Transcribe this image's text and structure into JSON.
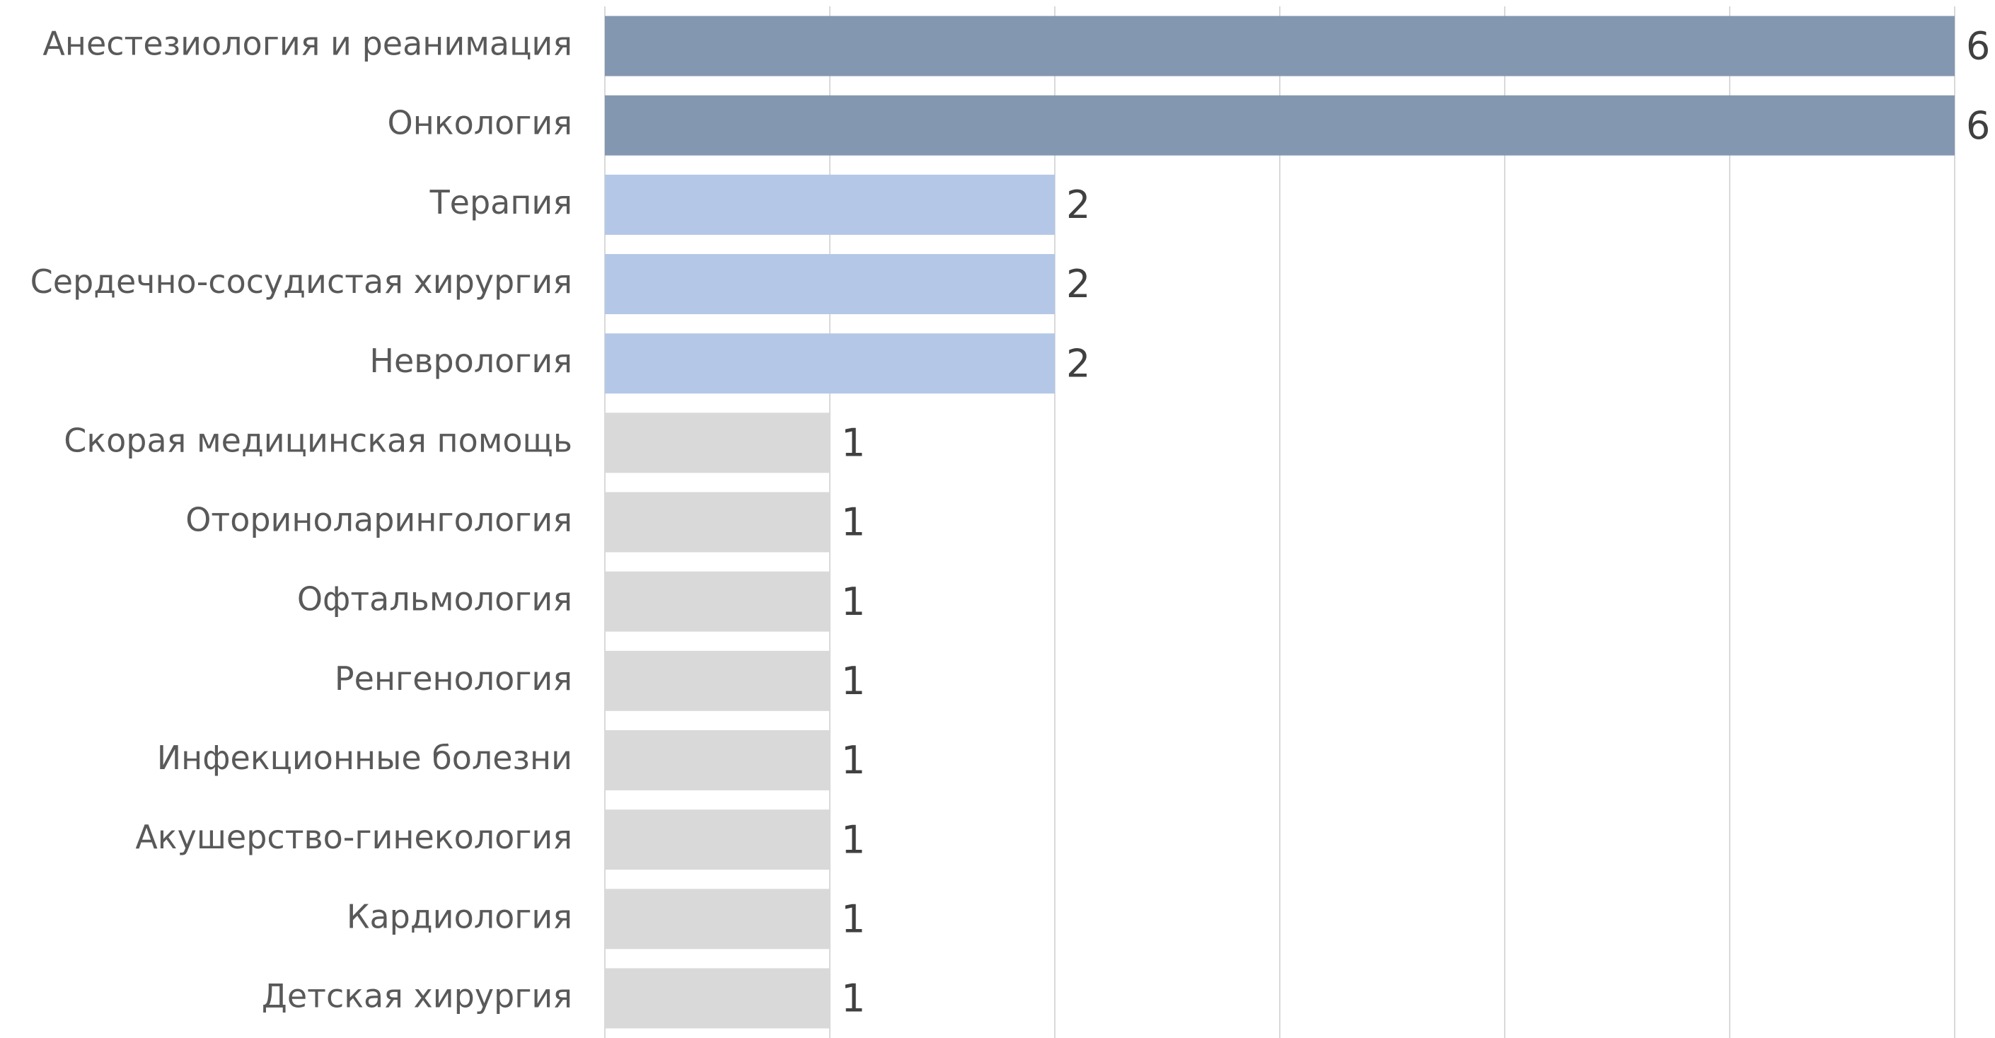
{
  "chart_data": {
    "type": "bar",
    "orientation": "horizontal",
    "categories": [
      "Анестезиология и реанимация",
      "Онкология",
      "Терапия",
      "Сердечно-сосудистая хирургия",
      "Неврология",
      "Скорая медицинская помощь",
      "Оториноларингология",
      "Офтальмология",
      "Ренгенология",
      "Инфекционные болезни",
      "Акушерство-гинекология",
      "Кардиология",
      "Детская хирургия"
    ],
    "values": [
      6,
      6,
      2,
      2,
      2,
      1,
      1,
      1,
      1,
      1,
      1,
      1,
      1
    ],
    "colors": [
      "#8497b0",
      "#8497b0",
      "#b4c7e7",
      "#b4c7e7",
      "#b4c7e7",
      "#d9d9d9",
      "#d9d9d9",
      "#d9d9d9",
      "#d9d9d9",
      "#d9d9d9",
      "#d9d9d9",
      "#d9d9d9",
      "#d9d9d9"
    ],
    "xlim": [
      0,
      6
    ],
    "xticks": [
      0,
      1,
      2,
      3,
      4,
      5,
      6
    ],
    "grid": true
  }
}
